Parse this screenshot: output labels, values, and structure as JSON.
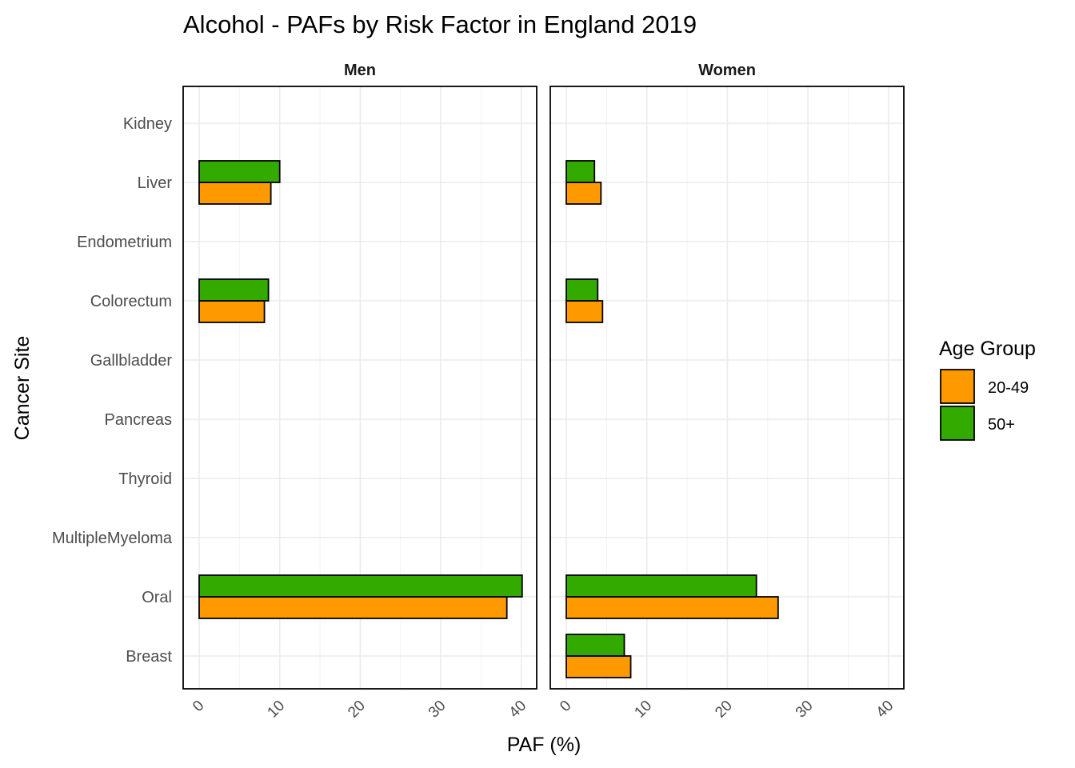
{
  "chart_data": {
    "type": "bar",
    "orientation": "horizontal",
    "title": "Alcohol  - PAFs by Risk Factor in England 2019",
    "xlabel": "PAF (%)",
    "ylabel": "Cancer Site",
    "xlim": [
      0,
      40
    ],
    "x_ticks": [
      "0",
      "10",
      "20",
      "30",
      "40"
    ],
    "grid": true,
    "legend_position": "right",
    "legend_title": "Age Group",
    "categories": [
      "Kidney",
      "Liver",
      "Endometrium",
      "Colorectum",
      "Gallbladder",
      "Pancreas",
      "Thyroid",
      "MultipleMyeloma",
      "Oral",
      "Breast"
    ],
    "series_keys": [
      {
        "name": "20-49",
        "color": "#FF9900"
      },
      {
        "name": "50+",
        "color": "#33AA00"
      }
    ],
    "panels": [
      {
        "name": "Men",
        "series": [
          {
            "name": "20-49",
            "values": [
              0,
              8.9,
              0,
              8.1,
              0,
              0,
              0,
              0,
              38.2,
              0
            ]
          },
          {
            "name": "50+",
            "values": [
              0,
              10.0,
              0,
              8.6,
              0,
              0,
              0,
              0,
              40.1,
              0
            ]
          }
        ]
      },
      {
        "name": "Women",
        "series": [
          {
            "name": "20-49",
            "values": [
              0,
              4.3,
              0,
              4.5,
              0,
              0,
              0,
              0,
              26.3,
              8.0
            ]
          },
          {
            "name": "50+",
            "values": [
              0,
              3.5,
              0,
              3.9,
              0,
              0,
              0,
              0,
              23.6,
              7.2
            ]
          }
        ]
      }
    ]
  }
}
